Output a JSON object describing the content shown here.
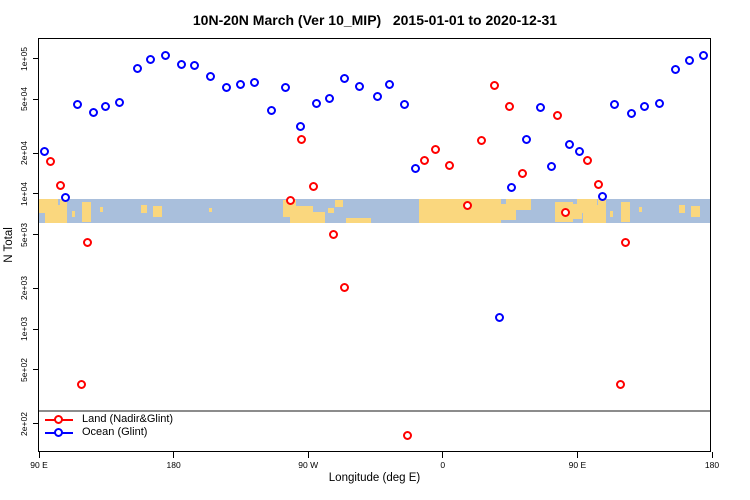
{
  "header": {
    "title": "10N-20N March (Ver 10_MIP)   2015-01-01 to 2020-12-31"
  },
  "chart_data": {
    "type": "scatter",
    "title": "10N-20N March (Ver 10_MIP)   2015-01-01 to 2020-12-31",
    "xlabel": "Longitude (deg E)",
    "ylabel": "N Total",
    "x_axis": {
      "min": 90,
      "max": 540,
      "note": "longitude axis wraps eastward: 90E to 180, 90W, 0, 90E, 180",
      "ticks": [
        {
          "value": 90,
          "label": "90 E"
        },
        {
          "value": 180,
          "label": "180"
        },
        {
          "value": 270,
          "label": "90 W"
        },
        {
          "value": 360,
          "label": "0"
        },
        {
          "value": 450,
          "label": "90 E"
        },
        {
          "value": 540,
          "label": "180"
        }
      ]
    },
    "y_axis": {
      "scale": "log",
      "min": 121,
      "max": 140000,
      "ticks": [
        {
          "value": 100000,
          "label": "1e+05"
        },
        {
          "value": 50000,
          "label": "5e+04"
        },
        {
          "value": 20000,
          "label": "2e+04"
        },
        {
          "value": 10000,
          "label": "1e+04"
        },
        {
          "value": 5000,
          "label": "5e+03"
        },
        {
          "value": 2000,
          "label": "2e+03"
        },
        {
          "value": 1000,
          "label": "1e+03"
        },
        {
          "value": 500,
          "label": "5e+02"
        },
        {
          "value": 200,
          "label": "2e+02"
        }
      ]
    },
    "series": [
      {
        "name": "Land (Nadir&Glint)",
        "color": "#FF0000",
        "points": [
          [
            97.8,
            17300
          ],
          [
            104.9,
            11500
          ],
          [
            119.0,
            383
          ],
          [
            123.0,
            4330
          ],
          [
            258.5,
            8900
          ],
          [
            265.9,
            25000
          ],
          [
            273.7,
            11200
          ],
          [
            287.3,
            5000
          ],
          [
            294.7,
            2000
          ],
          [
            336.6,
            161
          ],
          [
            348.0,
            17600
          ],
          [
            355.4,
            21300
          ],
          [
            364.8,
            16100
          ],
          [
            377.1,
            8200
          ],
          [
            386.0,
            24700
          ],
          [
            394.9,
            62700
          ],
          [
            405.0,
            43600
          ],
          [
            413.3,
            14100
          ],
          [
            436.7,
            37800
          ],
          [
            442.2,
            7200
          ],
          [
            457.0,
            17500
          ],
          [
            464.6,
            11600
          ],
          [
            478.9,
            383
          ],
          [
            482.4,
            4360
          ]
        ]
      },
      {
        "name": "Ocean (Glint)",
        "color": "#0000FF",
        "points": [
          [
            93.8,
            20300
          ],
          [
            107.9,
            9400
          ],
          [
            115.9,
            45600
          ],
          [
            126.6,
            39500
          ],
          [
            134.7,
            43700
          ],
          [
            144.2,
            47000
          ],
          [
            156.5,
            84300
          ],
          [
            165.0,
            97800
          ],
          [
            174.8,
            105000
          ],
          [
            185.8,
            90300
          ],
          [
            194.5,
            88700
          ],
          [
            205.2,
            73600
          ],
          [
            215.4,
            61000
          ],
          [
            225.1,
            63800
          ],
          [
            234.6,
            65600
          ],
          [
            245.6,
            41000
          ],
          [
            255.0,
            60600
          ],
          [
            265.0,
            31300
          ],
          [
            276.2,
            46400
          ],
          [
            284.9,
            50800
          ],
          [
            294.9,
            70300
          ],
          [
            304.7,
            62000
          ],
          [
            317.0,
            52300
          ],
          [
            324.4,
            63800
          ],
          [
            334.9,
            45100
          ],
          [
            342.0,
            15200
          ],
          [
            398.3,
            1200
          ],
          [
            406.5,
            11000
          ],
          [
            416.1,
            24900
          ],
          [
            425.5,
            43100
          ],
          [
            432.9,
            15900
          ],
          [
            445.2,
            22900
          ],
          [
            451.9,
            20400
          ],
          [
            467.0,
            9450
          ],
          [
            475.3,
            45500
          ],
          [
            486.4,
            39300
          ],
          [
            494.9,
            44000
          ],
          [
            505.4,
            46600
          ],
          [
            516.1,
            82500
          ],
          [
            525.5,
            96600
          ],
          [
            534.7,
            105000
          ]
        ]
      }
    ],
    "map_band": {
      "description": "10N-20N world-map strip drawn across plot",
      "top_value": 9200,
      "bottom_value": 6100,
      "ocean_color": "#A9BFDC",
      "land_color": "#FAD77E",
      "land_patches": [
        [
          90,
          103,
          0,
          0.6
        ],
        [
          94,
          109,
          0.25,
          1
        ],
        [
          104,
          109,
          0,
          0.3
        ],
        [
          112,
          114,
          0.5,
          0.75
        ],
        [
          119,
          125,
          0.15,
          0.95
        ],
        [
          131,
          133,
          0.35,
          0.55
        ],
        [
          158,
          162,
          0.25,
          0.6
        ],
        [
          166,
          172,
          0.3,
          0.75
        ],
        [
          204,
          206,
          0.4,
          0.55
        ],
        [
          253,
          262,
          0.05,
          0.75
        ],
        [
          258,
          273,
          0.3,
          1
        ],
        [
          273,
          281,
          0.55,
          1
        ],
        [
          283,
          287,
          0.4,
          0.6
        ],
        [
          288,
          293,
          0.05,
          0.35
        ],
        [
          295,
          312,
          0.8,
          1
        ],
        [
          344,
          399,
          0,
          1
        ],
        [
          399,
          409,
          0.2,
          0.9
        ],
        [
          402,
          419,
          0,
          0.45
        ],
        [
          435,
          447,
          0.15,
          0.95
        ],
        [
          443,
          453,
          0.2,
          0.85
        ],
        [
          450,
          463,
          0,
          0.6
        ],
        [
          454,
          469,
          0.25,
          1
        ],
        [
          464,
          469,
          0,
          0.3
        ],
        [
          472,
          474,
          0.5,
          0.75
        ],
        [
          479,
          485,
          0.15,
          0.95
        ],
        [
          491,
          493,
          0.35,
          0.55
        ],
        [
          518,
          522,
          0.25,
          0.6
        ],
        [
          526,
          532,
          0.3,
          0.75
        ]
      ]
    },
    "legend": {
      "position": "bottom-left",
      "divider_value": 251,
      "divider_color": "#8C8C8C",
      "items": [
        "Land (Nadir&Glint)",
        "Ocean (Glint)"
      ]
    }
  }
}
